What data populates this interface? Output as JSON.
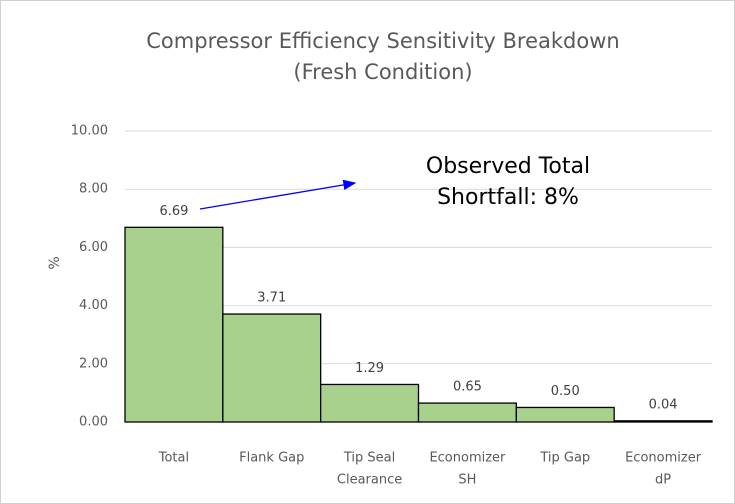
{
  "chart_data": {
    "type": "bar",
    "title": [
      "Compressor  Efficiency Sensitivity Breakdown",
      "(Fresh Condition)"
    ],
    "ylabel": "%",
    "categories": [
      [
        "Total"
      ],
      [
        "Flank Gap"
      ],
      [
        "Tip Seal",
        "Clearance"
      ],
      [
        "Economizer",
        "SH"
      ],
      [
        "Tip Gap"
      ],
      [
        "Economizer",
        "dP"
      ]
    ],
    "values": [
      6.69,
      3.71,
      1.29,
      0.65,
      0.5,
      0.04
    ],
    "value_labels": [
      "6.69",
      "3.71",
      "1.29",
      "0.65",
      "0.50",
      "0.04"
    ],
    "color": "#a9d18e",
    "ylim": [
      0,
      10
    ],
    "yticks": [
      {
        "value": 0,
        "label": "0.00"
      },
      {
        "value": 2,
        "label": "2.00"
      },
      {
        "value": 4,
        "label": "4.00"
      },
      {
        "value": 6,
        "label": "6.00"
      },
      {
        "value": 8,
        "label": "8.00"
      },
      {
        "value": 10,
        "label": "10.00"
      }
    ],
    "grid": true,
    "annotation": [
      "Observed Total",
      "Shortfall: 8%"
    ]
  }
}
